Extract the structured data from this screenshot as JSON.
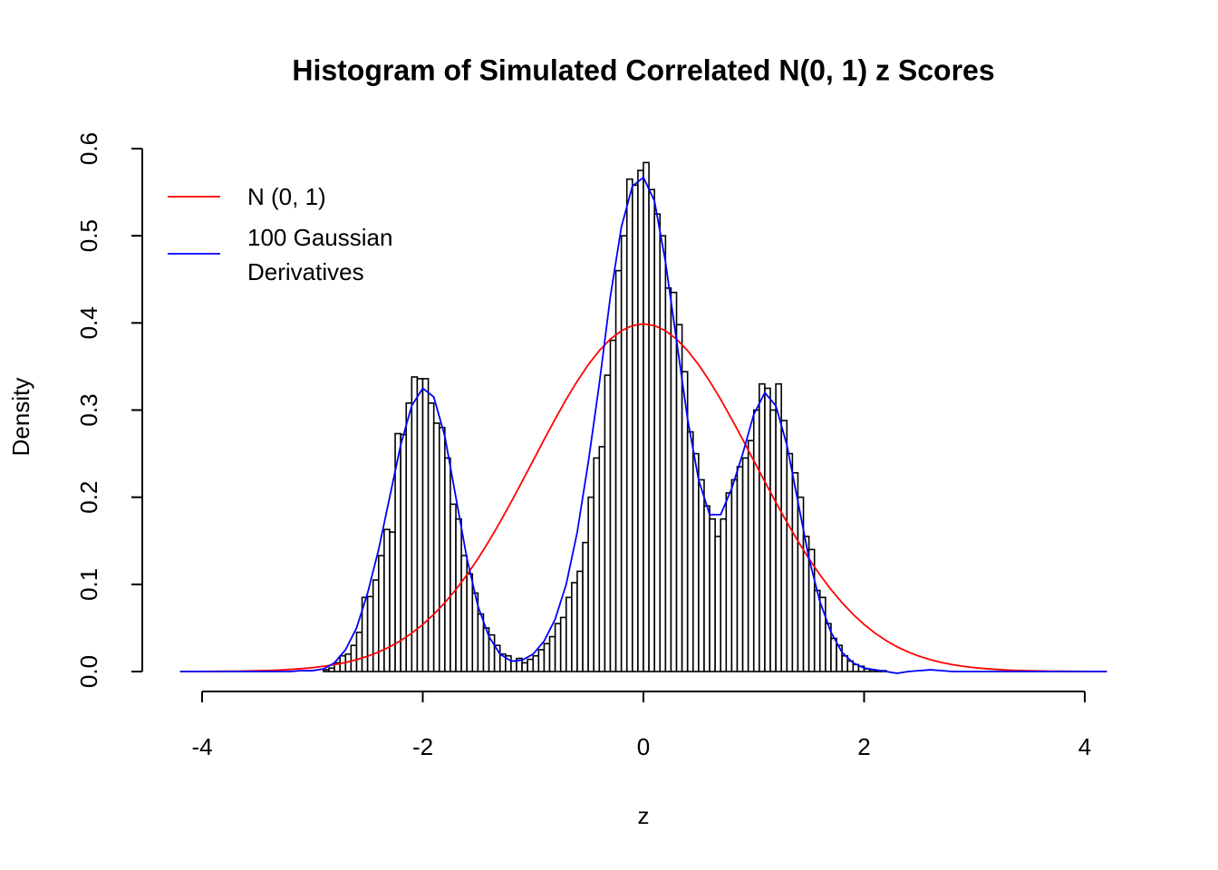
{
  "chart_data": {
    "type": "histogram",
    "title": "Histogram of Simulated Correlated N(0, 1) z Scores",
    "x_label": "z",
    "y_label": "Density",
    "xlim": [
      -4.2,
      4.2
    ],
    "xticks": [
      -4,
      -2,
      0,
      2,
      4
    ],
    "ylim": [
      0,
      0.6
    ],
    "yticks": [
      {
        "value": 0,
        "label": "0.0"
      },
      0.1,
      0.2,
      0.3,
      0.4,
      0.5,
      0.6
    ],
    "color": "#ffffff",
    "edgecolor": "#000000",
    "legend": "topleft",
    "bins": [
      -2.9,
      -2.85,
      -2.8,
      -2.75,
      -2.7,
      -2.65,
      -2.6,
      -2.55,
      -2.5,
      -2.45,
      -2.4,
      -2.35,
      -2.3,
      -2.25,
      -2.2,
      -2.15,
      -2.1,
      -2.05,
      -2,
      -1.95,
      -1.9,
      -1.85,
      -1.8,
      -1.75,
      -1.7,
      -1.65,
      -1.6,
      -1.55,
      -1.5,
      -1.45,
      -1.4,
      -1.35,
      -1.3,
      -1.25,
      -1.2,
      -1.15,
      -1.1,
      -1.05,
      -1,
      -0.95,
      -0.9,
      -0.85,
      -0.8,
      -0.75,
      -0.7,
      -0.65,
      -0.6,
      -0.55,
      -0.5,
      -0.45,
      -0.4,
      -0.35,
      -0.3,
      -0.25,
      -0.2,
      -0.15,
      -0.1,
      -0.05,
      0,
      0.05,
      0.1,
      0.15,
      0.2,
      0.25,
      0.3,
      0.35,
      0.4,
      0.45,
      0.5,
      0.55,
      0.6,
      0.65,
      0.7,
      0.75,
      0.8,
      0.85,
      0.9,
      0.95,
      1,
      1.05,
      1.1,
      1.15,
      1.2,
      1.25,
      1.3,
      1.35,
      1.4,
      1.45,
      1.5,
      1.55,
      1.6,
      1.65,
      1.7,
      1.75,
      1.8,
      1.85,
      1.9,
      1.95,
      2,
      2.05,
      2.1,
      2.15,
      2.2
    ],
    "values": [
      0.002,
      0.004,
      0.01,
      0.018,
      0.02,
      0.03,
      0.045,
      0.085,
      0.086,
      0.105,
      0.133,
      0.163,
      0.16,
      0.273,
      0.272,
      0.308,
      0.338,
      0.336,
      0.336,
      0.308,
      0.285,
      0.28,
      0.245,
      0.192,
      0.175,
      0.133,
      0.112,
      0.09,
      0.066,
      0.05,
      0.042,
      0.03,
      0.02,
      0.018,
      0.012,
      0.015,
      0.01,
      0.014,
      0.018,
      0.025,
      0.032,
      0.04,
      0.055,
      0.062,
      0.085,
      0.102,
      0.115,
      0.148,
      0.2,
      0.245,
      0.258,
      0.34,
      0.38,
      0.46,
      0.5,
      0.565,
      0.558,
      0.575,
      0.584,
      0.553,
      0.525,
      0.5,
      0.44,
      0.435,
      0.398,
      0.344,
      0.275,
      0.25,
      0.22,
      0.19,
      0.175,
      0.155,
      0.175,
      0.205,
      0.22,
      0.235,
      0.245,
      0.265,
      0.3,
      0.33,
      0.325,
      0.3,
      0.33,
      0.288,
      0.25,
      0.228,
      0.2,
      0.155,
      0.14,
      0.093,
      0.085,
      0.055,
      0.038,
      0.03,
      0.018,
      0.012,
      0.008,
      0.006,
      0.003,
      0.002,
      0.001,
      0.001
    ],
    "series": [
      {
        "name": "N (0, 1)",
        "color": "#ff0000",
        "type": "line",
        "x": [
          -4.2,
          -4.1,
          -4,
          -3.9,
          -3.8,
          -3.7,
          -3.6,
          -3.5,
          -3.4,
          -3.3,
          -3.2,
          -3.1,
          -3,
          -2.9,
          -2.8,
          -2.7,
          -2.6,
          -2.5,
          -2.4,
          -2.3,
          -2.2,
          -2.1,
          -2,
          -1.9,
          -1.8,
          -1.7,
          -1.6,
          -1.5,
          -1.4,
          -1.3,
          -1.2,
          -1.1,
          -1,
          -0.9,
          -0.8,
          -0.7,
          -0.6,
          -0.5,
          -0.4,
          -0.3,
          -0.2,
          -0.1,
          0,
          0.1,
          0.2,
          0.3,
          0.4,
          0.5,
          0.6,
          0.7,
          0.8,
          0.9,
          1,
          1.1,
          1.2,
          1.3,
          1.4,
          1.5,
          1.6,
          1.7,
          1.8,
          1.9,
          2,
          2.1,
          2.2,
          2.3,
          2.4,
          2.5,
          2.6,
          2.7,
          2.8,
          2.9,
          3,
          3.1,
          3.2,
          3.3,
          3.4,
          3.5,
          3.6,
          3.7,
          3.8,
          3.9,
          4,
          4.1,
          4.2
        ],
        "values": [
          0.0001,
          0.0001,
          0.0001,
          0.0002,
          0.0003,
          0.0004,
          0.0006,
          0.0009,
          0.0012,
          0.0017,
          0.0024,
          0.0033,
          0.0044,
          0.006,
          0.0079,
          0.0104,
          0.0136,
          0.0175,
          0.0224,
          0.0283,
          0.0355,
          0.044,
          0.054,
          0.0656,
          0.079,
          0.094,
          0.1109,
          0.1295,
          0.1497,
          0.1714,
          0.1942,
          0.2179,
          0.242,
          0.2661,
          0.2897,
          0.3123,
          0.3332,
          0.3521,
          0.3683,
          0.3814,
          0.391,
          0.397,
          0.3989,
          0.397,
          0.391,
          0.3814,
          0.3683,
          0.3521,
          0.3332,
          0.3123,
          0.2897,
          0.2661,
          0.242,
          0.2179,
          0.1942,
          0.1714,
          0.1497,
          0.1295,
          0.1109,
          0.094,
          0.079,
          0.0656,
          0.054,
          0.044,
          0.0355,
          0.0283,
          0.0224,
          0.0175,
          0.0136,
          0.0104,
          0.0079,
          0.006,
          0.0044,
          0.0033,
          0.0024,
          0.0017,
          0.0012,
          0.0009,
          0.0006,
          0.0004,
          0.0003,
          0.0002,
          0.0001,
          0.0001,
          0.0001
        ]
      },
      {
        "name": "100 Gaussian\nDerivatives",
        "color": "#0000ff",
        "type": "line",
        "x": [
          -4.2,
          -4.1,
          -4,
          -3.9,
          -3.8,
          -3.7,
          -3.6,
          -3.5,
          -3.4,
          -3.3,
          -3.2,
          -3.1,
          -3,
          -2.9,
          -2.8,
          -2.7,
          -2.6,
          -2.5,
          -2.4,
          -2.3,
          -2.2,
          -2.1,
          -2,
          -1.9,
          -1.8,
          -1.7,
          -1.6,
          -1.5,
          -1.4,
          -1.3,
          -1.2,
          -1.1,
          -1,
          -0.9,
          -0.8,
          -0.7,
          -0.6,
          -0.5,
          -0.4,
          -0.3,
          -0.2,
          -0.1,
          0,
          0.1,
          0.2,
          0.3,
          0.4,
          0.5,
          0.6,
          0.7,
          0.8,
          0.9,
          1,
          1.1,
          1.2,
          1.3,
          1.4,
          1.5,
          1.6,
          1.7,
          1.8,
          1.9,
          2,
          2.1,
          2.2,
          2.3,
          2.4,
          2.5,
          2.6,
          2.7,
          2.8,
          2.9,
          3,
          3.1,
          3.2,
          3.3,
          3.4,
          3.5,
          3.6,
          3.7,
          3.8,
          3.9,
          4,
          4.1,
          4.2
        ],
        "values": [
          0,
          0,
          0,
          0,
          0,
          0,
          0,
          0,
          0,
          0,
          0,
          0.001,
          0.001,
          0.003,
          0.01,
          0.025,
          0.05,
          0.09,
          0.14,
          0.2,
          0.26,
          0.305,
          0.325,
          0.315,
          0.27,
          0.2,
          0.13,
          0.075,
          0.04,
          0.02,
          0.012,
          0.013,
          0.02,
          0.035,
          0.06,
          0.1,
          0.16,
          0.24,
          0.33,
          0.43,
          0.51,
          0.557,
          0.567,
          0.54,
          0.47,
          0.38,
          0.29,
          0.22,
          0.18,
          0.18,
          0.21,
          0.25,
          0.295,
          0.32,
          0.305,
          0.26,
          0.195,
          0.13,
          0.08,
          0.045,
          0.022,
          0.01,
          0.004,
          0.002,
          0,
          -0.002,
          0,
          0.001,
          0.002,
          0.001,
          0,
          0,
          0,
          0,
          0,
          0,
          0,
          0,
          0,
          0,
          0,
          0,
          0,
          0,
          0
        ]
      }
    ]
  }
}
